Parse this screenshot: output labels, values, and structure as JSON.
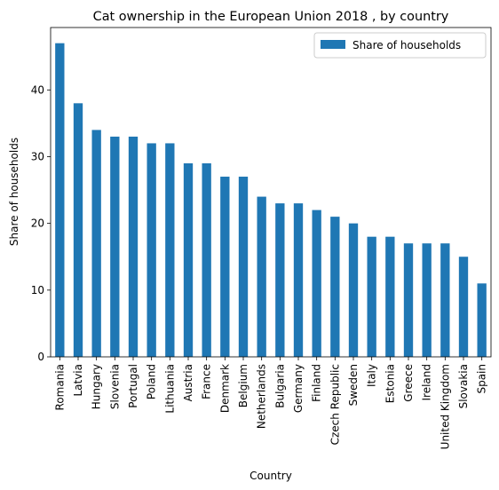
{
  "chart_data": {
    "type": "bar",
    "title": "Cat ownership in the European Union 2018 , by country",
    "xlabel": "Country",
    "ylabel": "Share of households",
    "categories": [
      "Romania",
      "Latvia",
      "Hungary",
      "Slovenia",
      "Portugal",
      "Poland",
      "Lithuania",
      "Austria",
      "France",
      "Denmark",
      "Belgium",
      "Netherlands",
      "Bulgaria",
      "Germany",
      "Finland",
      "Czech Republic",
      "Sweden",
      "Italy",
      "Estonia",
      "Greece",
      "Ireland",
      "United Kingdom",
      "Slovakia",
      "Spain"
    ],
    "series": [
      {
        "name": "Share of households",
        "values": [
          47,
          38,
          34,
          33,
          33,
          32,
          32,
          29,
          29,
          27,
          27,
          24,
          23,
          23,
          22,
          21,
          20,
          18,
          18,
          17,
          17,
          17,
          15,
          11
        ]
      }
    ],
    "yticks": [
      "0",
      "10",
      "20",
      "30",
      "40"
    ],
    "ylim": [
      0,
      49.35
    ],
    "legend_position": "top-right",
    "grid": false,
    "colors": {
      "bar": "#1f77b4"
    }
  }
}
